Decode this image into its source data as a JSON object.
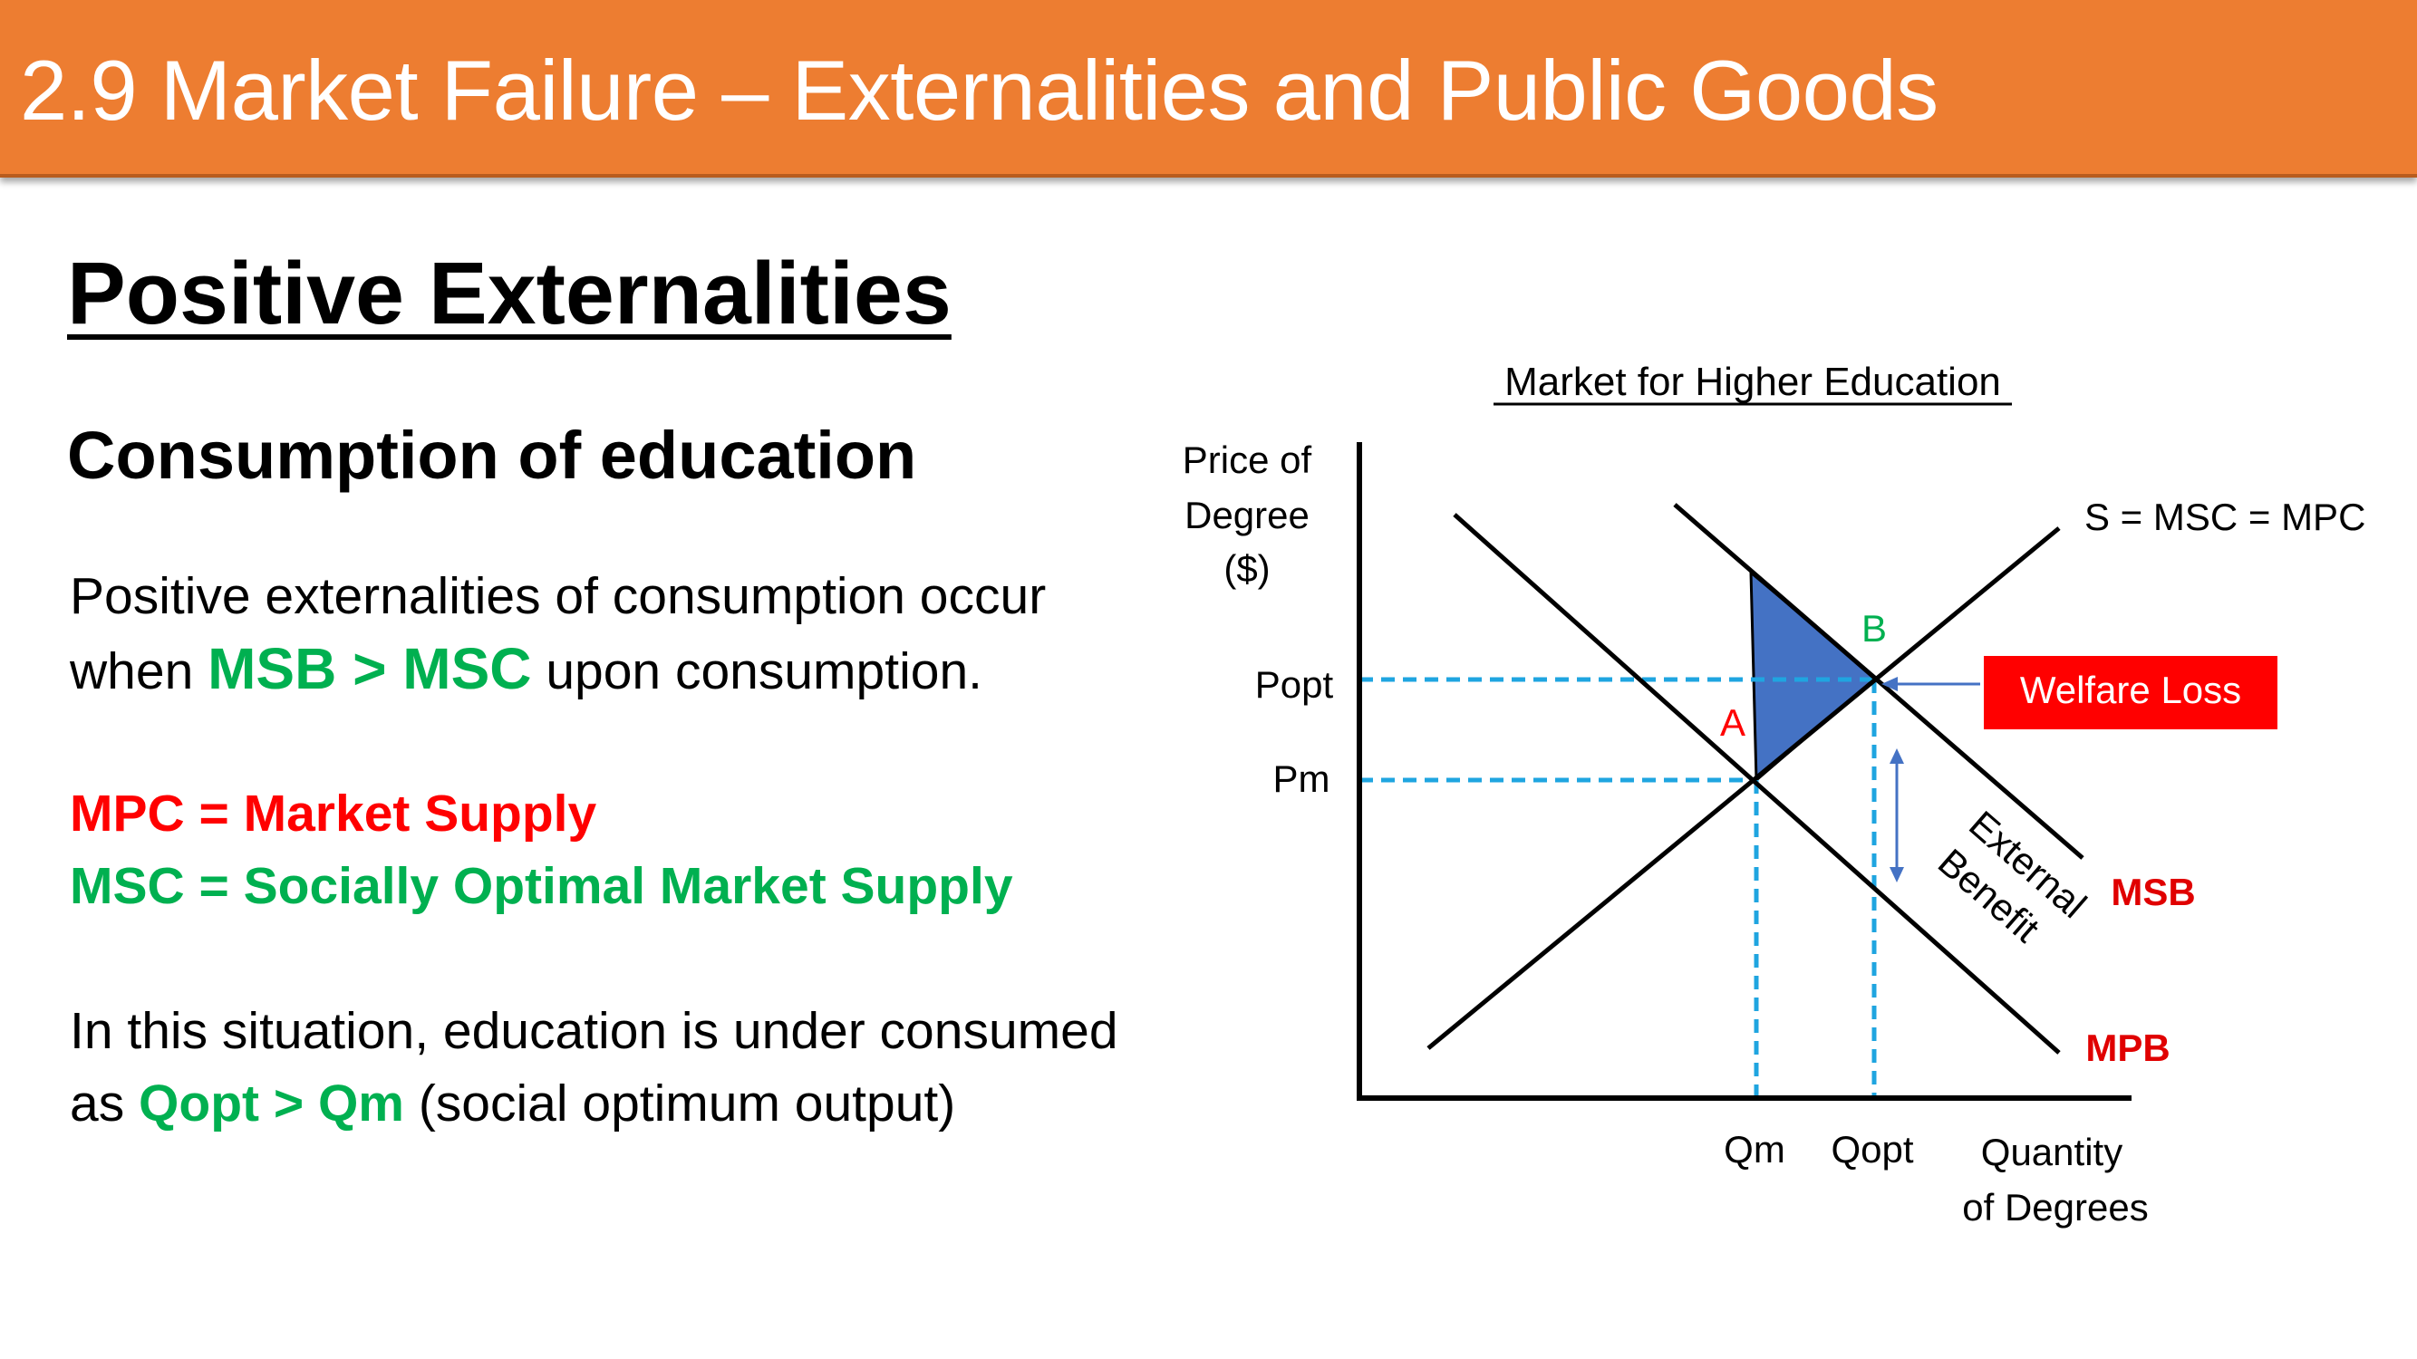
{
  "header": {
    "title": "2.9 Market Failure – Externalities and Public Goods"
  },
  "content": {
    "heading": "Positive Externalities",
    "subheading": "Consumption of education",
    "para1_line1": "Positive externalities of consumption occur",
    "para1_line2_pre": "when ",
    "para1_line2_highlight": "MSB > MSC",
    "para1_line2_post": " upon consumption.",
    "def_mpc": "MPC = Market Supply",
    "def_msc": "MSC = Socially Optimal Market Supply",
    "para3_line1": "In this situation, education is under consumed",
    "para3_line2_pre": "as ",
    "para3_line2_highlight": "Qopt > Qm",
    "para3_line2_post": " (social optimum output)"
  },
  "diagram": {
    "title": "Market for Higher Education",
    "y_axis_label": [
      "Price of",
      "Degree",
      "($)"
    ],
    "x_axis_label": [
      "Quantity",
      "of Degrees"
    ],
    "price_labels": {
      "popt": "Popt",
      "pm": "Pm"
    },
    "quantity_labels": {
      "qm": "Qm",
      "qopt": "Qopt"
    },
    "curve_labels": {
      "supply": "S = MSC = MPC",
      "msb": "MSB",
      "mpb": "MPB"
    },
    "points": {
      "a": "A",
      "b": "B"
    },
    "welfare_loss_label": "Welfare Loss",
    "external_benefit_label": [
      "External",
      "Benefit"
    ],
    "colors": {
      "welfare_triangle": "#4472C4",
      "dashed_guides": "#1FA5E0",
      "welfare_box": "#FF0000",
      "curve_label_red": "#E00000",
      "point_b_green": "#00B050"
    }
  }
}
